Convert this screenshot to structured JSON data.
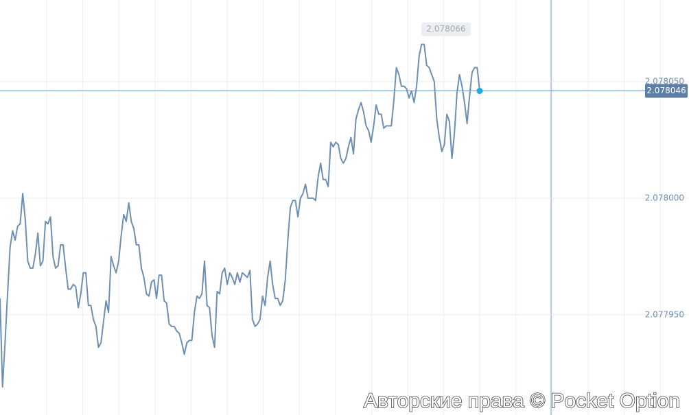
{
  "chart_data": {
    "type": "line",
    "color": "#6d8fb3",
    "ylim": [
      2.077907,
      2.078085
    ],
    "yticks": [
      {
        "value": 2.07795,
        "label": "2.077950"
      },
      {
        "value": 2.078,
        "label": "2.078000"
      },
      {
        "value": 2.07805,
        "label": "2.078050"
      }
    ],
    "grid": true,
    "current_price": 2.078046,
    "max_price": 2.078066,
    "watermark": "Авторские права © Pocket Option",
    "values": [
      2.077957,
      2.077919,
      2.077938,
      2.077959,
      2.077979,
      2.077986,
      2.077982,
      2.077988,
      2.077989,
      2.078002,
      2.077991,
      2.077973,
      2.07797,
      2.07797,
      2.077976,
      2.077985,
      2.077971,
      2.077973,
      2.07799,
      2.077989,
      2.077992,
      2.077975,
      2.07797,
      2.077971,
      2.07798,
      2.07798,
      2.07797,
      2.077961,
      2.077961,
      2.077963,
      2.077962,
      2.077953,
      2.077959,
      2.077968,
      2.077968,
      2.077954,
      2.077954,
      2.077948,
      2.077945,
      2.077936,
      2.077938,
      2.077947,
      2.077956,
      2.077951,
      2.077975,
      2.077971,
      2.077968,
      2.077973,
      2.077984,
      2.077993,
      2.07799,
      2.077998,
      2.07799,
      2.077987,
      2.07798,
      2.07798,
      2.07797,
      2.077966,
      2.077959,
      2.077958,
      2.077964,
      2.077965,
      2.077957,
      2.077967,
      2.077967,
      2.077956,
      2.077955,
      2.077946,
      2.077945,
      2.077945,
      2.077943,
      2.077942,
      2.077938,
      2.077933,
      2.077938,
      2.077939,
      2.077939,
      2.077951,
      2.077958,
      2.077957,
      2.077959,
      2.077973,
      2.077954,
      2.077953,
      2.077941,
      2.077936,
      2.07796,
      2.077959,
      2.077968,
      2.07797,
      2.077963,
      2.077968,
      2.077966,
      2.077963,
      2.077968,
      2.077964,
      2.077968,
      2.077967,
      2.077966,
      2.077969,
      2.077948,
      2.077945,
      2.077946,
      2.077948,
      2.077958,
      2.077954,
      2.077966,
      2.077973,
      2.077963,
      2.077957,
      2.077957,
      2.077954,
      2.077956,
      2.077965,
      2.077982,
      2.077996,
      2.077999,
      2.077999,
      2.077992,
      2.078,
      2.078002,
      2.078006,
      2.078,
      2.078,
      2.078,
      2.077999,
      2.078009,
      2.078015,
      2.078008,
      2.078008,
      2.078005,
      2.078024,
      2.078022,
      2.078024,
      2.078023,
      2.078017,
      2.078015,
      2.078017,
      2.078022,
      2.078026,
      2.078019,
      2.078034,
      2.078038,
      2.078041,
      2.078037,
      2.078031,
      2.078029,
      2.078024,
      2.078031,
      2.07804,
      2.078036,
      2.078036,
      2.07803,
      2.078031,
      2.078031,
      2.078031,
      2.078042,
      2.078056,
      2.078053,
      2.078048,
      2.078048,
      2.078047,
      2.078043,
      2.078046,
      2.078041,
      2.078048,
      2.078061,
      2.078066,
      2.078066,
      2.078057,
      2.078056,
      2.078053,
      2.07805,
      2.078034,
      2.078026,
      2.07802,
      2.078023,
      2.078036,
      2.078033,
      2.078017,
      2.078028,
      2.078045,
      2.078053,
      2.078048,
      2.078041,
      2.078032,
      2.078044,
      2.078054,
      2.078056,
      2.078056,
      2.078046
    ]
  }
}
